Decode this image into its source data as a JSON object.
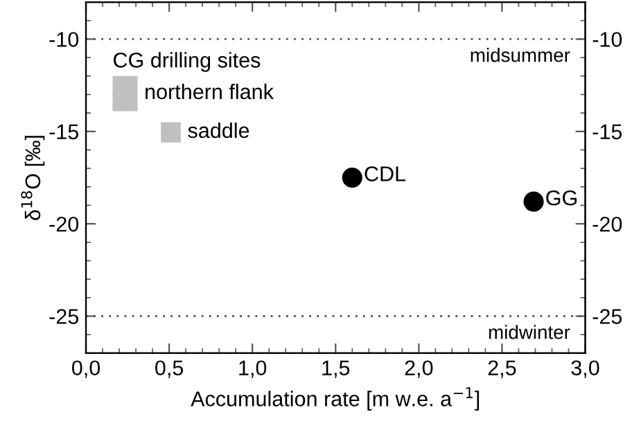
{
  "chart_data": {
    "type": "scatter",
    "xlabel": "Accumulation rate [m w.e. a$^{−1}$]",
    "ylabel": "δ$^{18}$O [‰]",
    "legend_title": "CG drilling sites",
    "xlim": [
      0,
      3
    ],
    "xticks": [
      {
        "value": 0,
        "label": "0,0"
      },
      {
        "value": 0.5,
        "label": "0,5"
      },
      {
        "value": 1,
        "label": "1,0"
      },
      {
        "value": 1.5,
        "label": "1,5"
      },
      {
        "value": 2,
        "label": "2,0"
      },
      {
        "value": 2.5,
        "label": "2,5"
      },
      {
        "value": 3,
        "label": "3,0"
      }
    ],
    "ylim": [
      -27,
      -8
    ],
    "yticks": [
      -10,
      -15,
      -20,
      -25
    ],
    "y2lim": [
      -27,
      -8
    ],
    "y2ticks": [
      -10,
      -15,
      -20,
      -25
    ],
    "grid": false,
    "series": [
      {
        "name": "northern flank",
        "marker": "square",
        "color": "#c0c0c0",
        "x": [
          0.235
        ],
        "xerrors": [
          [
            0.16,
            0.31
          ]
        ],
        "values": [
          -12.95
        ],
        "errors": [
          [
            -13.9,
            -12.0
          ]
        ]
      },
      {
        "name": "saddle",
        "marker": "square",
        "color": "#c0c0c0",
        "x": [
          0.51
        ],
        "xerrors": [
          [
            0.45,
            0.57
          ]
        ],
        "values": [
          -15.05
        ],
        "errors": [
          [
            -15.6,
            -14.5
          ]
        ]
      },
      {
        "name": "CDL",
        "marker": "circle",
        "color": "#000000",
        "x": [
          1.6
        ],
        "values": [
          -17.5
        ]
      },
      {
        "name": "GG",
        "marker": "circle",
        "color": "#000000",
        "x": [
          2.69
        ],
        "values": [
          -18.8
        ]
      }
    ],
    "ref_lines": [
      {
        "axis": "y",
        "value": -10,
        "label": "midsummer",
        "color": "#555555",
        "line_style": "dotted"
      },
      {
        "axis": "y",
        "value": -25,
        "label": "midwinter",
        "color": "#555555",
        "line_style": "dotted"
      }
    ]
  }
}
